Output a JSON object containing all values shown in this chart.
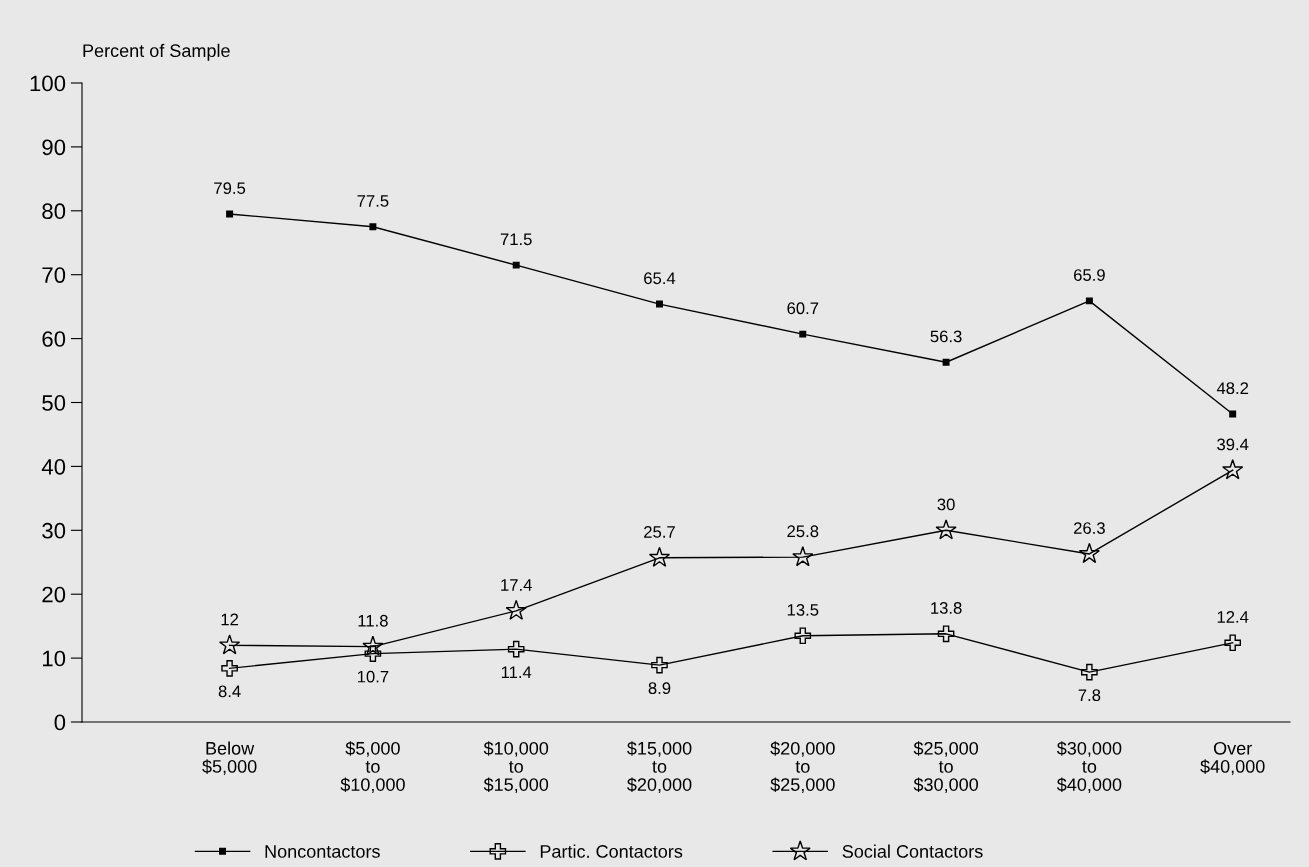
{
  "chart_data": {
    "type": "line",
    "ylabel": "Percent of Sample",
    "categories": [
      "Below\n$5,000",
      "$5,000\nto\n$10,000",
      "$10,000\nto\n$15,000",
      "$15,000\nto\n$20,000",
      "$20,000\nto\n$25,000",
      "$25,000\nto\n$30,000",
      "$30,000\nto\n$40,000",
      "Over\n$40,000"
    ],
    "series": [
      {
        "name": "Noncontactors",
        "color": "#000000",
        "marker": "square",
        "values": [
          79.5,
          77.5,
          71.5,
          65.4,
          60.7,
          56.3,
          65.9,
          48.2
        ]
      },
      {
        "name": "Partic. Contactors",
        "color": "#000000",
        "marker": "cross",
        "values": [
          8.4,
          10.7,
          11.4,
          8.9,
          13.5,
          13.8,
          7.8,
          12.4
        ]
      },
      {
        "name": "Social Contactors",
        "color": "#000000",
        "marker": "star",
        "values": [
          12,
          11.8,
          17.4,
          25.7,
          25.8,
          30,
          26.3,
          39.4
        ]
      }
    ],
    "ylim": [
      0,
      100
    ],
    "yticks": [
      0,
      10,
      20,
      30,
      40,
      50,
      60,
      70,
      80,
      90,
      100
    ],
    "data_labels": true,
    "grid": false,
    "legend": "bottom",
    "line_style": "solid"
  }
}
